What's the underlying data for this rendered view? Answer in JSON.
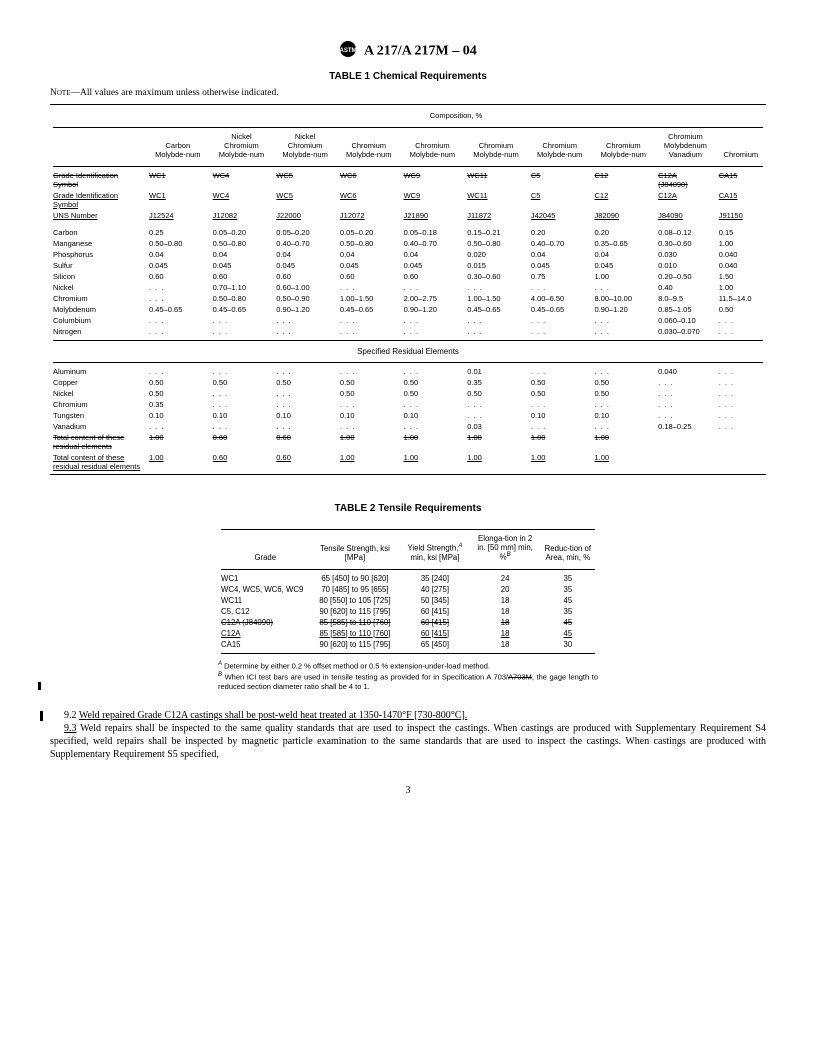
{
  "doc": {
    "designation": "A 217/A 217M – 04",
    "table1_title": "TABLE 1   Chemical Requirements",
    "note": "—All values are maximum unless otherwise indicated.",
    "note_label": "Note",
    "composition_label": "Composition, %",
    "residual_label": "Specified Residual Elements",
    "table2_title": "TABLE 2   Tensile Requirements",
    "page": "3"
  },
  "t1_heads": {
    "h0": "",
    "h1": "Carbon Molybde-num",
    "h2": "Nickel Chromium Molybde-num",
    "h3": "Nickel Chromium Molybde-num",
    "h4": "Chromium Molybde-num",
    "h5": "Chromium Molybde-num",
    "h6": "Chromium Molybde-num",
    "h7": "Chromium Molybde-num",
    "h8": "Chromium Molybde-num",
    "h9": "Chromium Molybdenum Vanadium",
    "h10": "Chromium"
  },
  "t1_gis_old": {
    "label": "Grade Identification Symbol",
    "c1": "WC1",
    "c2": "WC4",
    "c3": "WC5",
    "c4": "WC6",
    "c5": "WC9",
    "c6": "WC11",
    "c7": "C5",
    "c8": "C12",
    "c9": "C12A (J84090)",
    "c10": "CA15"
  },
  "t1_gis_new": {
    "label": "Grade Identification Symbol",
    "c1": "WC1",
    "c2": "WC4",
    "c3": "WC5",
    "c4": "WC6",
    "c5": "WC9",
    "c6": "WC11",
    "c7": "C5",
    "c8": "C12",
    "c9": "C12A",
    "c10": "CA15"
  },
  "t1_uns": {
    "label": "UNS Number",
    "c1": "J12524",
    "c2": "J12082",
    "c3": "J22000",
    "c4": "J12072",
    "c5": "J21890",
    "c6": "J11872",
    "c7": "J42045",
    "c8": "J82090",
    "c9": "J84090",
    "c10": "J91150"
  },
  "t1_rows": [
    {
      "e": "Carbon",
      "v": [
        "0.25",
        "0.05–0.20",
        "0.05–0.20",
        "0.05–0.20",
        "0.05–0.18",
        "0.15–0.21",
        "0.20",
        "0.20",
        "0.08–0.12",
        "0.15"
      ]
    },
    {
      "e": "Manganese",
      "v": [
        "0.50–0.80",
        "0.50–0.80",
        "0.40–0.70",
        "0.50–0.80",
        "0.40–0.70",
        "0.50–0.80",
        "0.40–0.70",
        "0.35–0.65",
        "0.30–0.60",
        "1.00"
      ]
    },
    {
      "e": "Phosphorus",
      "v": [
        "0.04",
        "0.04",
        "0.04",
        "0.04",
        "0.04",
        "0.020",
        "0.04",
        "0.04",
        "0.030",
        "0.040"
      ]
    },
    {
      "e": "Sulfur",
      "v": [
        "0.045",
        "0.045",
        "0.045",
        "0.045",
        "0.045",
        "0.015",
        "0.045",
        "0.045",
        "0.010",
        "0.040"
      ]
    },
    {
      "e": "Silicon",
      "v": [
        "0.60",
        "0.60",
        "0.60",
        "0.60",
        "0.60",
        "0.30–0.60",
        "0.75",
        "1.00",
        "0.20–0.50",
        "1.50"
      ]
    },
    {
      "e": "Nickel",
      "v": [
        ". . .",
        "0.70–1.10",
        "0.60–1.00",
        ". . .",
        ". . .",
        ". . .",
        ". . .",
        ". . .",
        "0.40",
        "1.00"
      ]
    },
    {
      "e": "Chromium",
      "v": [
        ". . .",
        "0.50–0.80",
        "0.50–0.90",
        "1.00–1.50",
        "2.00–2.75",
        "1.00–1.50",
        "4.00–6.50",
        "8.00–10.00",
        "8.0–9.5",
        "11.5–14.0"
      ]
    },
    {
      "e": "Molybdenum",
      "v": [
        "0.45–0.65",
        "0.45–0.65",
        "0.90–1.20",
        "0.45–0.65",
        "0.90–1.20",
        "0.45–0.65",
        "0.45–0.65",
        "0.90–1.20",
        "0.85–1.05",
        "0.50"
      ]
    },
    {
      "e": "Columbium",
      "v": [
        ". . .",
        ". . .",
        ". . .",
        ". . .",
        ". . .",
        ". . .",
        ". . .",
        ". . .",
        "0.060–0.10",
        ". . ."
      ]
    },
    {
      "e": "Nitrogen",
      "v": [
        ". . .",
        ". . .",
        ". . .",
        ". . .",
        ". . .",
        ". . .",
        ". . .",
        ". . .",
        "0.030–0.070",
        ". . ."
      ]
    }
  ],
  "t1_res": [
    {
      "e": "Aluminum",
      "v": [
        ". . .",
        ". . .",
        ". . .",
        ". . .",
        ". . .",
        "0.01",
        ". . .",
        ". . .",
        "0.040",
        ". . ."
      ]
    },
    {
      "e": "Copper",
      "v": [
        "0.50",
        "0.50",
        "0.50",
        "0.50",
        "0.50",
        "0.35",
        "0.50",
        "0.50",
        ". . .",
        ". . ."
      ]
    },
    {
      "e": "Nickel",
      "v": [
        "0.50",
        ". . .",
        ". . .",
        "0.50",
        "0.50",
        "0.50",
        "0.50",
        "0.50",
        ". . .",
        ". . ."
      ]
    },
    {
      "e": "Chromium",
      "v": [
        "0.35",
        ". . .",
        ". . .",
        ". . .",
        ". . .",
        ". . .",
        ". . .",
        ". . .",
        ". . .",
        ". . ."
      ]
    },
    {
      "e": "Tungsten",
      "v": [
        "0.10",
        "0.10",
        "0.10",
        "0.10",
        "0.10",
        ". . .",
        "0.10",
        "0.10",
        ". . .",
        ". . ."
      ]
    },
    {
      "e": "Vanadium",
      "v": [
        ". . .",
        ". . .",
        ". . .",
        ". . .",
        ". . .",
        "0.03",
        ". . .",
        ". . .",
        "0.18–0.25",
        ". . ."
      ]
    }
  ],
  "t1_total_old": {
    "label": "Total content of these residual elements",
    "v": [
      "1.00",
      "0.60",
      "0.60",
      "1.00",
      "1.00",
      "1.00",
      "1.00",
      "1.00",
      "",
      ""
    ]
  },
  "t1_total_new": {
    "label": "Total content of these residual residual elements",
    "v": [
      "1.00",
      "0.60",
      "0.60",
      "1.00",
      "1.00",
      "1.00",
      "1.00",
      "1.00",
      "",
      ""
    ]
  },
  "t2_heads": {
    "h0": "Grade",
    "h1": "Tensile Strength, ksi [MPa]",
    "h2": "Yield Strength,",
    "h2b": " min, ksi [MPa]",
    "h3a": "Elonga-tion in 2 in. [50 mm] min, %",
    "h4": "Reduc-tion of Area, min, %"
  },
  "t2_rows": [
    {
      "g": "WC1",
      "t": "65 [450] to 90 [620]",
      "y": "35 [240]",
      "e": "24",
      "r": "35"
    },
    {
      "g": "WC4, WC5, WC6, WC9",
      "t": "70 [485] to 95 [655]",
      "y": "40 [275]",
      "e": "20",
      "r": "35"
    },
    {
      "g": "WC11",
      "t": "80 [550] to 105 [725]",
      "y": "50 [345]",
      "e": "18",
      "r": "45"
    },
    {
      "g": "C5, C12",
      "t": "90 [620] to 115 [795]",
      "y": "60 [415]",
      "e": "18",
      "r": "35"
    }
  ],
  "t2_old": {
    "g": "C12A (J84090)",
    "t": "85 [585] to 110 [760]",
    "y": "60 [415]",
    "e": "18",
    "r": "45"
  },
  "t2_new": {
    "g": "C12A",
    "t": "85 [585] to 110 [760]",
    "y": "60 [415]",
    "e": "18",
    "r": "45"
  },
  "t2_last": {
    "g": "CA15",
    "t": "90 [620] to 115 [795]",
    "y": "65 [450]",
    "e": "18",
    "r": "30"
  },
  "footnotes": {
    "a": " Determine by either 0.2 % offset method or 0.5 % extension-under-load method.",
    "b_pre": " When ICI test bars are used in tensile testing as provided for in Specification A 703/",
    "b_strike": "A703M",
    "b_post": ", the gage length to reduced section diameter ratio shall be 4 to 1."
  },
  "body": {
    "p1_num": "9.2 ",
    "p1": "Weld repaired Grade C12A castings shall be post-weld heat treated at 1350-1470°F [730-800°C].",
    "p2_num": "9.3",
    "p2": " Weld repairs shall be inspected to the same quality standards that are used to inspect the castings. When castings are produced with Supplementary Requirement S4 specified, weld repairs shall be inspected by magnetic particle examination to the same standards that are used to inspect the castings. When castings are produced with Supplementary Requirement S5 specified,"
  }
}
